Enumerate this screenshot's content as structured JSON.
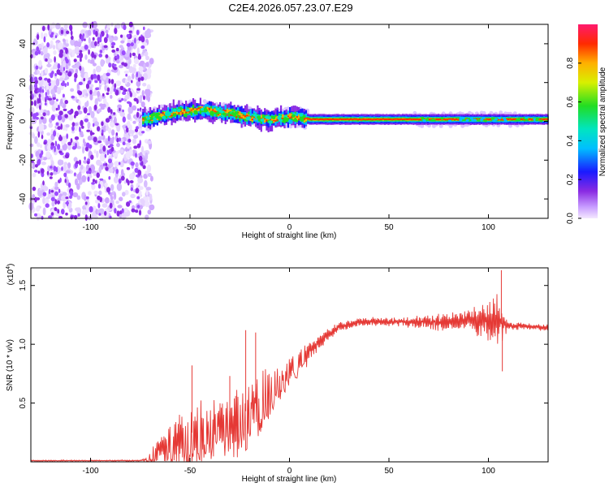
{
  "title": "C2E4.2026.057.23.07.E29",
  "chart_data": [
    {
      "type": "heatmap",
      "name": "spectrogram",
      "xlabel": "Height of straight line (km)",
      "ylabel": "Frequency (Hz)",
      "xlim": [
        -130,
        130
      ],
      "ylim": [
        -50,
        50
      ],
      "xticks": [
        "-100",
        "-50",
        "0",
        "50",
        "100"
      ],
      "xtick_values": [
        -100,
        -50,
        0,
        50,
        100
      ],
      "yticks": [
        "-40",
        "-20",
        "0",
        "20",
        "40"
      ],
      "ytick_values": [
        -40,
        -20,
        0,
        20,
        40
      ],
      "colorbar": {
        "label": "Normalized spectral amplitude",
        "range": [
          0,
          1
        ],
        "ticks": [
          "0.0",
          "0.2",
          "0.4",
          "0.6",
          "0.8"
        ],
        "tick_values": [
          0.0,
          0.2,
          0.4,
          0.6,
          0.8
        ]
      },
      "ridge": {
        "x": [
          -72,
          -65,
          -55,
          -45,
          -38,
          -30,
          -20,
          -10,
          0,
          5,
          10,
          50,
          100,
          130
        ],
        "freq_hz": [
          1,
          3,
          5,
          6,
          5,
          4,
          2,
          1,
          2,
          2,
          1,
          1,
          1,
          1
        ]
      },
      "noise_region_x": [
        -130,
        -73
      ]
    },
    {
      "type": "line",
      "name": "snr",
      "xlabel": "Height of straight line (km)",
      "ylabel": "SNR (10 * v/v)",
      "scale_label": "(x10",
      "scale_exp": "4",
      "xlim": [
        -130,
        130
      ],
      "ylim": [
        0,
        1.65
      ],
      "xticks": [
        "-100",
        "-50",
        "0",
        "50",
        "100"
      ],
      "xtick_values": [
        -100,
        -50,
        0,
        50,
        100
      ],
      "yticks": [
        "0.5",
        "1.0",
        "1.5"
      ],
      "ytick_values": [
        0.5,
        1.0,
        1.5
      ],
      "envelope": {
        "x": [
          -130,
          -75,
          -72,
          -65,
          -55,
          -45,
          -35,
          -25,
          -15,
          -5,
          5,
          15,
          25,
          35,
          50,
          70,
          90,
          100,
          105,
          107,
          110,
          120,
          130
        ],
        "snr": [
          0.01,
          0.01,
          0.02,
          0.12,
          0.2,
          0.28,
          0.33,
          0.38,
          0.55,
          0.7,
          0.86,
          1.02,
          1.15,
          1.19,
          1.19,
          1.19,
          1.2,
          1.2,
          1.2,
          1.18,
          1.16,
          1.15,
          1.14
        ],
        "jitter": [
          0.004,
          0.004,
          0.01,
          0.08,
          0.18,
          0.18,
          0.16,
          0.2,
          0.18,
          0.1,
          0.07,
          0.05,
          0.03,
          0.03,
          0.03,
          0.05,
          0.07,
          0.12,
          0.18,
          0.12,
          0.03,
          0.02,
          0.02
        ]
      },
      "spikes": [
        {
          "x": -49,
          "snr": 0.82
        },
        {
          "x": -30,
          "snr": 0.73
        },
        {
          "x": -22,
          "snr": 1.12
        },
        {
          "x": -17,
          "snr": 1.1
        },
        {
          "x": 106.5,
          "snr": 1.63
        },
        {
          "x": 107,
          "snr": 0.77
        }
      ],
      "color": "#e53935"
    }
  ]
}
